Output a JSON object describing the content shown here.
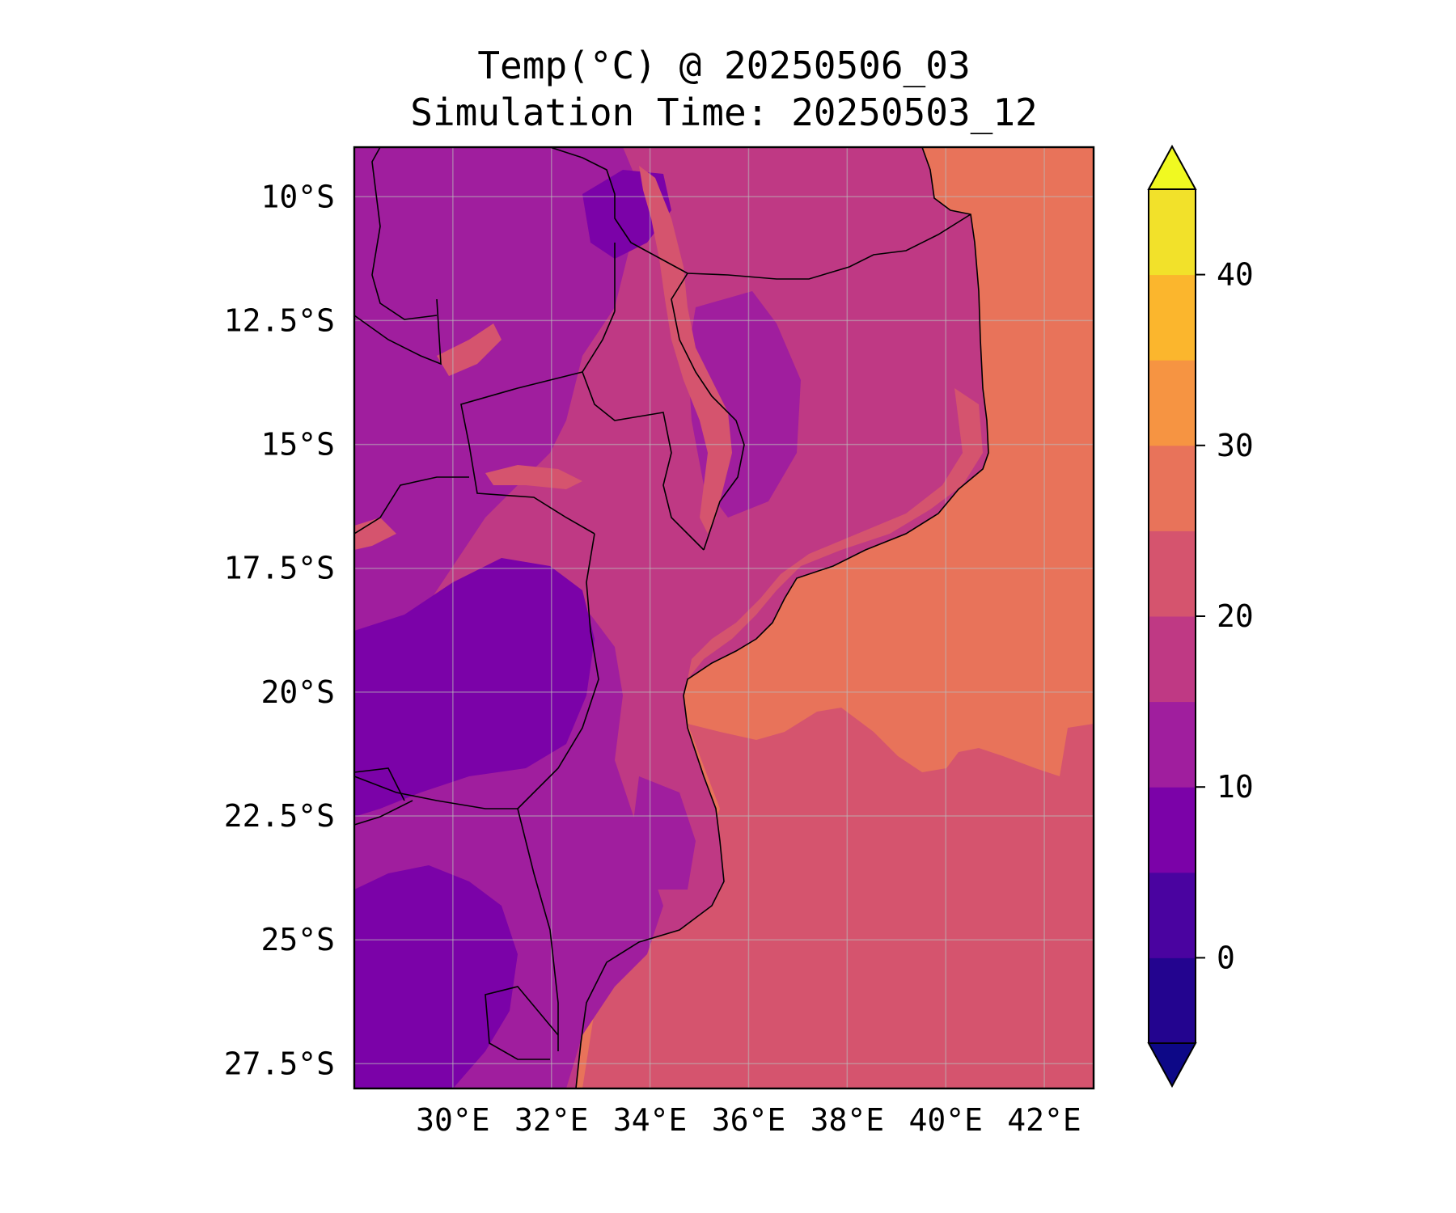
{
  "figure": {
    "title_line1": "Temp(°C) @ 20250506_03",
    "title_line2": "Simulation Time: 20250503_12"
  },
  "map": {
    "lon_range": [
      28.0,
      43.0
    ],
    "lat_range": [
      -28.0,
      -9.0
    ],
    "gridlines": true,
    "lat_ticks": [
      {
        "value": -10.0,
        "label": "10°S"
      },
      {
        "value": -12.5,
        "label": "12.5°S"
      },
      {
        "value": -15.0,
        "label": "15°S"
      },
      {
        "value": -17.5,
        "label": "17.5°S"
      },
      {
        "value": -20.0,
        "label": "20°S"
      },
      {
        "value": -22.5,
        "label": "22.5°S"
      },
      {
        "value": -25.0,
        "label": "25°S"
      },
      {
        "value": -27.5,
        "label": "27.5°S"
      }
    ],
    "lon_ticks": [
      {
        "value": 30,
        "label": "30°E"
      },
      {
        "value": 32,
        "label": "32°E"
      },
      {
        "value": 34,
        "label": "34°E"
      },
      {
        "value": 36,
        "label": "36°E"
      },
      {
        "value": 38,
        "label": "38°E"
      },
      {
        "value": 40,
        "label": "40°E"
      },
      {
        "value": 42,
        "label": "42°E"
      }
    ]
  },
  "colorbar": {
    "range": [
      -5,
      45
    ],
    "extend": "both",
    "levels": [
      {
        "from": -5,
        "to": 0,
        "color": "#23048f"
      },
      {
        "from": 0,
        "to": 5,
        "color": "#4a03a0"
      },
      {
        "from": 5,
        "to": 10,
        "color": "#7b02a8"
      },
      {
        "from": 10,
        "to": 15,
        "color": "#a01e9e"
      },
      {
        "from": 15,
        "to": 20,
        "color": "#bf3984"
      },
      {
        "from": 20,
        "to": 25,
        "color": "#d5546e"
      },
      {
        "from": 25,
        "to": 30,
        "color": "#e8735a"
      },
      {
        "from": 30,
        "to": 35,
        "color": "#f69442"
      },
      {
        "from": 35,
        "to": 40,
        "color": "#fbb62d"
      },
      {
        "from": 40,
        "to": 45,
        "color": "#f2e12a"
      }
    ],
    "under_color": "#0d0887",
    "over_color": "#f0f921",
    "ticks": [
      {
        "value": 0,
        "label": "0"
      },
      {
        "value": 10,
        "label": "10"
      },
      {
        "value": 20,
        "label": "20"
      },
      {
        "value": 30,
        "label": "30"
      },
      {
        "value": 40,
        "label": "40"
      }
    ]
  }
}
